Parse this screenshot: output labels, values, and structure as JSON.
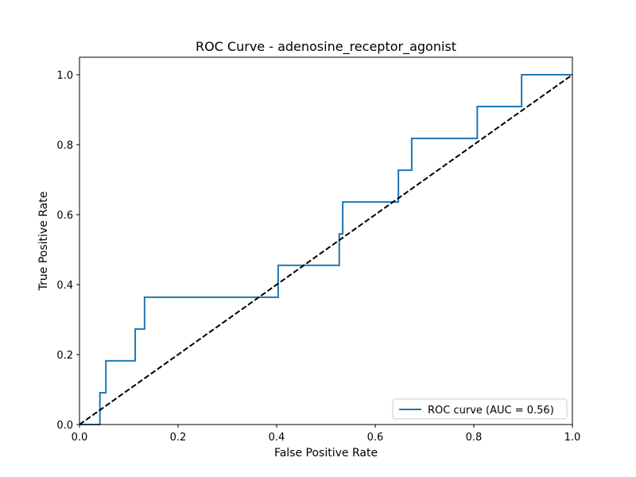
{
  "chart_data": {
    "type": "line",
    "title": "ROC Curve - adenosine_receptor_agonist",
    "xlabel": "False Positive Rate",
    "ylabel": "True Positive Rate",
    "xlim": [
      0.0,
      1.0
    ],
    "ylim": [
      0.0,
      1.05
    ],
    "xticks": [
      "0.0",
      "0.2",
      "0.4",
      "0.6",
      "0.8",
      "1.0"
    ],
    "yticks": [
      "0.0",
      "0.2",
      "0.4",
      "0.6",
      "0.8",
      "1.0"
    ],
    "grid": false,
    "legend_position": "lower right",
    "series": [
      {
        "name": "ROC curve (AUC = 0.56)",
        "color": "#1f77b4",
        "style": "solid",
        "x": [
          0.0,
          0.0414,
          0.0414,
          0.0536,
          0.0536,
          0.113,
          0.113,
          0.132,
          0.132,
          0.403,
          0.403,
          0.527,
          0.527,
          0.534,
          0.534,
          0.647,
          0.647,
          0.674,
          0.674,
          0.807,
          0.807,
          0.897,
          0.897,
          1.0
        ],
        "y": [
          0.0,
          0.0,
          0.091,
          0.091,
          0.182,
          0.182,
          0.273,
          0.273,
          0.364,
          0.364,
          0.455,
          0.455,
          0.545,
          0.545,
          0.636,
          0.636,
          0.727,
          0.727,
          0.818,
          0.818,
          0.909,
          0.909,
          1.0,
          1.0
        ]
      },
      {
        "name": "",
        "color": "#000000",
        "style": "dashed",
        "x": [
          0.0,
          1.0
        ],
        "y": [
          0.0,
          1.0
        ]
      }
    ]
  }
}
